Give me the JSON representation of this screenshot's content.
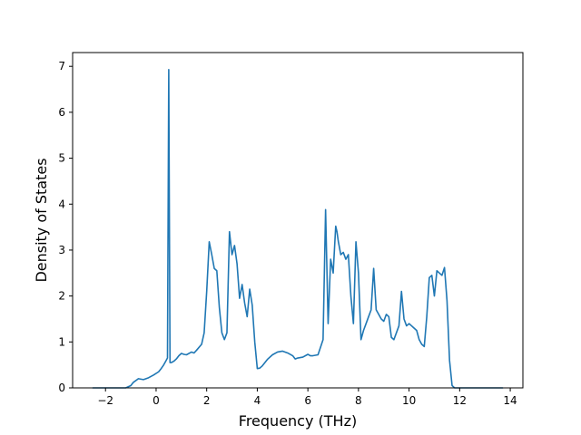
{
  "chart_data": {
    "type": "line",
    "title": "",
    "xlabel": "Frequency (THz)",
    "ylabel": "Density of States",
    "xlim": [
      -3.3,
      14.5
    ],
    "ylim": [
      0,
      7.3
    ],
    "xticks": [
      -2,
      0,
      2,
      4,
      6,
      8,
      10,
      12,
      14
    ],
    "xtick_labels": [
      "−2",
      "0",
      "2",
      "4",
      "6",
      "8",
      "10",
      "12",
      "14"
    ],
    "yticks": [
      0,
      1,
      2,
      3,
      4,
      5,
      6,
      7
    ],
    "ytick_labels": [
      "0",
      "1",
      "2",
      "3",
      "4",
      "5",
      "6",
      "7"
    ],
    "grid": false,
    "legend": "none",
    "series": [
      {
        "color": "#1f77b4",
        "x": [
          -2.5,
          -1.2,
          -1.0,
          -0.9,
          -0.7,
          -0.5,
          -0.3,
          -0.1,
          0.1,
          0.2,
          0.3,
          0.4,
          0.45,
          0.5,
          0.55,
          0.6,
          0.7,
          0.8,
          0.9,
          1.0,
          1.1,
          1.2,
          1.4,
          1.5,
          1.6,
          1.8,
          1.9,
          2.0,
          2.1,
          2.2,
          2.3,
          2.4,
          2.5,
          2.6,
          2.7,
          2.8,
          2.9,
          3.0,
          3.1,
          3.2,
          3.3,
          3.4,
          3.5,
          3.6,
          3.7,
          3.8,
          3.9,
          4.0,
          4.1,
          4.2,
          4.3,
          4.4,
          4.6,
          4.8,
          5.0,
          5.2,
          5.4,
          5.5,
          5.6,
          5.8,
          6.0,
          6.1,
          6.2,
          6.4,
          6.6,
          6.7,
          6.8,
          6.9,
          7.0,
          7.1,
          7.15,
          7.2,
          7.3,
          7.4,
          7.5,
          7.6,
          7.7,
          7.8,
          7.9,
          8.0,
          8.1,
          8.2,
          8.3,
          8.4,
          8.5,
          8.6,
          8.7,
          8.8,
          8.9,
          9.0,
          9.1,
          9.2,
          9.3,
          9.4,
          9.5,
          9.6,
          9.7,
          9.8,
          9.9,
          10.0,
          10.1,
          10.2,
          10.3,
          10.4,
          10.5,
          10.6,
          10.7,
          10.8,
          10.9,
          11.0,
          11.1,
          11.2,
          11.3,
          11.4,
          11.5,
          11.6,
          11.7,
          11.8,
          11.9,
          12.0,
          12.1,
          12.2,
          12.3,
          12.4,
          12.6,
          13.7
        ],
        "y": [
          0.0,
          0.0,
          0.05,
          0.12,
          0.2,
          0.18,
          0.22,
          0.28,
          0.35,
          0.42,
          0.5,
          0.6,
          0.65,
          6.93,
          0.55,
          0.55,
          0.58,
          0.63,
          0.7,
          0.75,
          0.73,
          0.72,
          0.78,
          0.76,
          0.82,
          0.95,
          1.2,
          2.1,
          3.18,
          2.9,
          2.6,
          2.55,
          1.75,
          1.2,
          1.05,
          1.2,
          3.4,
          2.9,
          3.1,
          2.7,
          1.95,
          2.25,
          1.85,
          1.55,
          2.15,
          1.8,
          1.0,
          0.42,
          0.43,
          0.48,
          0.55,
          0.62,
          0.72,
          0.78,
          0.8,
          0.76,
          0.7,
          0.63,
          0.65,
          0.67,
          0.73,
          0.7,
          0.7,
          0.72,
          1.05,
          3.88,
          1.4,
          2.8,
          2.5,
          3.52,
          3.4,
          3.2,
          2.9,
          2.95,
          2.8,
          2.9,
          2.0,
          1.4,
          3.18,
          2.5,
          1.05,
          1.25,
          1.4,
          1.55,
          1.7,
          2.6,
          1.7,
          1.6,
          1.5,
          1.45,
          1.6,
          1.55,
          1.1,
          1.05,
          1.2,
          1.35,
          2.1,
          1.5,
          1.35,
          1.4,
          1.35,
          1.3,
          1.25,
          1.05,
          0.95,
          0.9,
          1.55,
          2.4,
          2.45,
          2.0,
          2.55,
          2.5,
          2.45,
          2.62,
          1.9,
          0.6,
          0.05,
          0.0,
          0.0,
          0.0,
          0.0,
          0.0,
          0.0,
          0.0,
          0.0,
          0.0
        ]
      }
    ]
  }
}
